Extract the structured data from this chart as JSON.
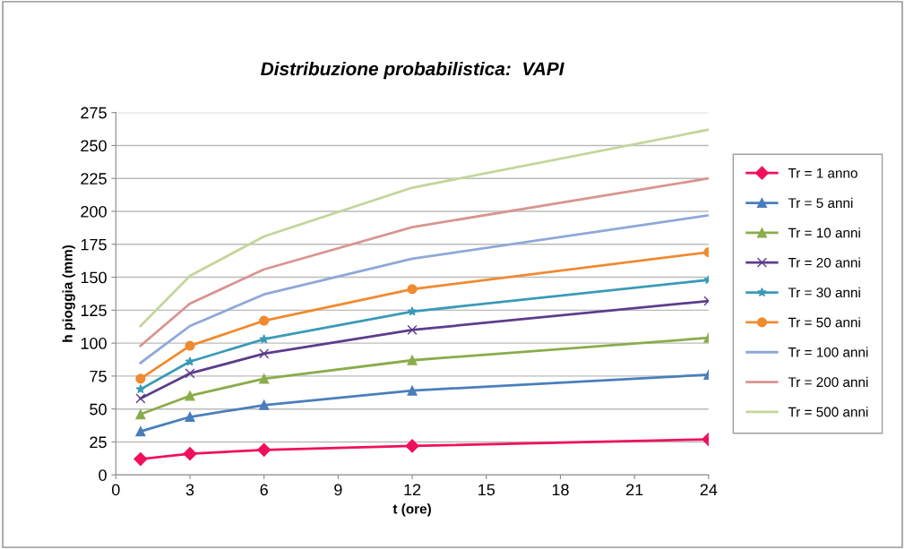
{
  "chart_data": {
    "type": "line",
    "title": "Distribuzione probabilistica:  VAPI",
    "xlabel": "t (ore)",
    "ylabel": "h pioggia (mm)",
    "x": [
      1,
      3,
      6,
      12,
      24
    ],
    "series": [
      {
        "name": "Tr = 1 anno",
        "color": "#f0105a",
        "marker": "diamond",
        "values": [
          12,
          16,
          19,
          22,
          27
        ]
      },
      {
        "name": "Tr = 5 anni",
        "color": "#4a7ebb",
        "marker": "triangle",
        "values": [
          33,
          44,
          53,
          64,
          76
        ]
      },
      {
        "name": "Tr = 10 anni",
        "color": "#8aac4a",
        "marker": "triangle",
        "values": [
          46,
          60,
          73,
          87,
          104
        ]
      },
      {
        "name": "Tr = 20 anni",
        "color": "#5c3c8c",
        "marker": "cross",
        "values": [
          58,
          77,
          92,
          110,
          132
        ]
      },
      {
        "name": "Tr = 30 anni",
        "color": "#3a9ab8",
        "marker": "star",
        "values": [
          65,
          86,
          103,
          124,
          148
        ]
      },
      {
        "name": "Tr = 50 anni",
        "color": "#f08a30",
        "marker": "circle",
        "values": [
          73,
          98,
          117,
          141,
          169
        ]
      },
      {
        "name": "Tr = 100 anni",
        "color": "#8ea8d8",
        "marker": "none",
        "values": [
          85,
          113,
          137,
          164,
          197
        ]
      },
      {
        "name": "Tr = 200 anni",
        "color": "#d99590",
        "marker": "none",
        "values": [
          98,
          130,
          156,
          188,
          225
        ]
      },
      {
        "name": "Tr = 500 anni",
        "color": "#c3d69b",
        "marker": "none",
        "values": [
          113,
          151,
          181,
          218,
          262
        ]
      }
    ],
    "xlim": [
      0,
      24
    ],
    "xticks": [
      0,
      3,
      6,
      9,
      12,
      15,
      18,
      21,
      24
    ],
    "ylim": [
      0,
      275
    ],
    "yticks": [
      0,
      25,
      50,
      75,
      100,
      125,
      150,
      175,
      200,
      225,
      250,
      275
    ],
    "grid": "y",
    "legend": "right",
    "line_style": "solid"
  }
}
